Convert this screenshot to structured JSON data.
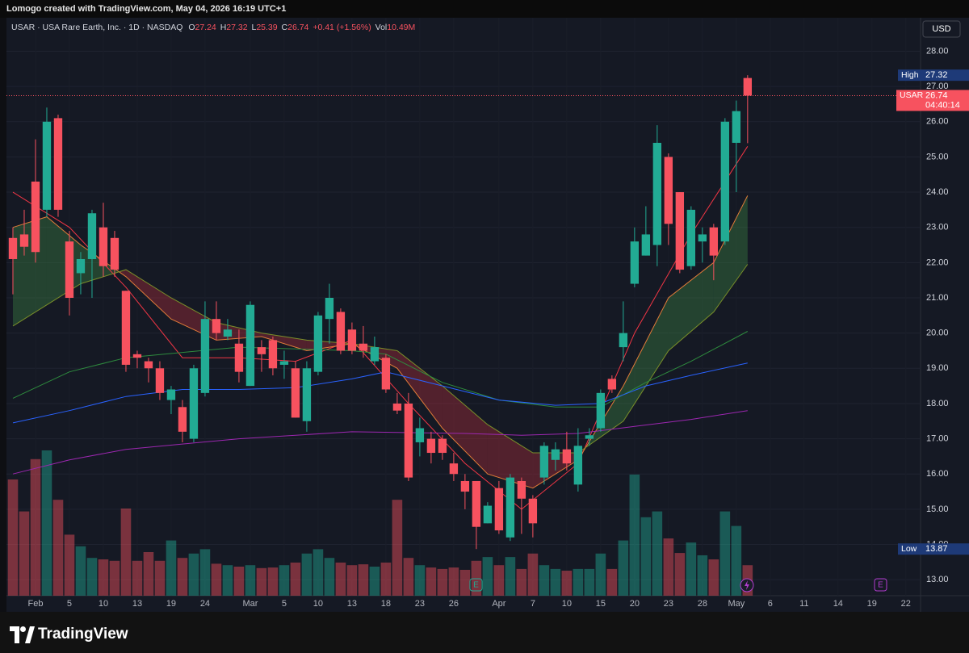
{
  "chart_data": {
    "type": "candlestick",
    "top_bar": "Lomogo created with TradingView.com, May 04, 2026 16:19 UTC+1",
    "symbol": "USAR · USA Rare Earth, Inc. · 1D · NASDAQ",
    "ohlc_labels": [
      "O",
      "H",
      "L",
      "C"
    ],
    "change": "+0.41 (+1.56%)",
    "vol_label": "Vol",
    "currency": "USD",
    "brand": "TradingView",
    "ticker": "USAR",
    "countdown": "04:40:14",
    "high_label": "High",
    "low_label": "Low",
    "events": [
      {
        "label": "E"
      },
      {
        "label": "E"
      }
    ],
    "up_color": "#22ab94",
    "down_color": "#f7525f",
    "grid": true,
    "xlim": [
      -0.57,
      80.3
    ],
    "ylim": [
      12.5,
      28.95
    ],
    "yticks": [
      {
        "value": 13,
        "label": "13.00"
      },
      {
        "value": 14,
        "label": "14.00"
      },
      {
        "value": 15,
        "label": "15.00"
      },
      {
        "value": 16,
        "label": "16.00"
      },
      {
        "value": 17,
        "label": "17.00"
      },
      {
        "value": 18,
        "label": "18.00"
      },
      {
        "value": 19,
        "label": "19.00"
      },
      {
        "value": 20,
        "label": "20.00"
      },
      {
        "value": 21,
        "label": "21.00"
      },
      {
        "value": 22,
        "label": "22.00"
      },
      {
        "value": 23,
        "label": "23.00"
      },
      {
        "value": 24,
        "label": "24.00"
      },
      {
        "value": 25,
        "label": "25.00"
      },
      {
        "value": 26,
        "label": "26.00"
      },
      {
        "value": 27,
        "label": "27.00"
      },
      {
        "value": 28,
        "label": "28.00"
      }
    ],
    "xticks": [
      {
        "value": 2,
        "label": "Feb"
      },
      {
        "value": 5,
        "label": "5"
      },
      {
        "value": 8,
        "label": "10"
      },
      {
        "value": 11,
        "label": "13"
      },
      {
        "value": 14,
        "label": "19"
      },
      {
        "value": 17,
        "label": "24"
      },
      {
        "value": 21,
        "label": "Mar"
      },
      {
        "value": 24,
        "label": "5"
      },
      {
        "value": 27,
        "label": "10"
      },
      {
        "value": 30,
        "label": "13"
      },
      {
        "value": 33,
        "label": "18"
      },
      {
        "value": 36,
        "label": "23"
      },
      {
        "value": 39,
        "label": "26"
      },
      {
        "value": 43,
        "label": "Apr"
      },
      {
        "value": 46,
        "label": "7"
      },
      {
        "value": 49,
        "label": "10"
      },
      {
        "value": 52,
        "label": "15"
      },
      {
        "value": 55,
        "label": "20"
      },
      {
        "value": 58,
        "label": "23"
      },
      {
        "value": 61,
        "label": "28"
      },
      {
        "value": 64,
        "label": "May"
      },
      {
        "value": 67,
        "label": "6"
      },
      {
        "value": 70,
        "label": "11"
      },
      {
        "value": 73,
        "label": "14"
      },
      {
        "value": 76,
        "label": "19"
      },
      {
        "value": 79,
        "label": "22"
      }
    ],
    "open": [
      22.7,
      22.8,
      24.3,
      23.5,
      26.1,
      22.6,
      21.7,
      22.1,
      23.0,
      22.7,
      21.2,
      19.4,
      19.2,
      19.0,
      18.1,
      17.9,
      17.0,
      18.3,
      20.4,
      19.9,
      19.7,
      18.5,
      19.6,
      19.8,
      19.1,
      19.0,
      17.5,
      18.9,
      20.4,
      20.6,
      20.1,
      19.7,
      19.2,
      19.3,
      18.0,
      18.0,
      16.9,
      17.0,
      17.0,
      16.3,
      15.8,
      15.8,
      14.6,
      15.6,
      14.2,
      15.8,
      15.3,
      15.9,
      16.4,
      16.7,
      15.7,
      17.0,
      17.3,
      18.7,
      19.6,
      21.4,
      22.2,
      22.5,
      25.0,
      24.0,
      21.9,
      22.6,
      23.0,
      22.6,
      25.4,
      27.24
    ],
    "high": [
      23.0,
      23.5,
      25.5,
      26.4,
      26.2,
      22.9,
      22.3,
      23.5,
      23.7,
      22.9,
      21.2,
      19.5,
      19.3,
      19.2,
      18.5,
      18.1,
      19.1,
      20.9,
      20.9,
      20.4,
      20.1,
      20.9,
      19.8,
      19.9,
      19.5,
      19.2,
      19.2,
      20.6,
      21.4,
      20.7,
      20.3,
      20.2,
      19.9,
      19.4,
      18.3,
      18.3,
      17.6,
      17.2,
      17.1,
      16.6,
      16.0,
      15.8,
      15.2,
      15.8,
      16.0,
      15.9,
      15.4,
      16.9,
      16.9,
      17.2,
      17.3,
      17.3,
      18.4,
      18.8,
      20.9,
      23.0,
      23.6,
      25.9,
      25.1,
      24.0,
      23.6,
      23.0,
      23.1,
      26.1,
      26.6,
      27.32
    ],
    "low": [
      21.1,
      22.2,
      22.0,
      23.3,
      23.3,
      20.5,
      21.1,
      21.0,
      21.6,
      21.6,
      18.9,
      19.0,
      18.6,
      18.1,
      17.7,
      16.9,
      16.9,
      18.2,
      19.8,
      19.8,
      18.6,
      18.5,
      18.9,
      18.8,
      18.7,
      17.6,
      17.2,
      18.8,
      19.7,
      19.4,
      19.4,
      19.3,
      19.1,
      18.3,
      17.7,
      15.8,
      16.5,
      16.3,
      16.4,
      15.8,
      15.0,
      13.87,
      14.6,
      14.3,
      14.1,
      14.3,
      14.2,
      15.7,
      16.1,
      16.1,
      15.5,
      16.8,
      17.2,
      18.3,
      19.2,
      21.3,
      22.2,
      21.9,
      22.5,
      21.7,
      21.8,
      22.0,
      21.5,
      22.5,
      24.0,
      25.39
    ],
    "close": [
      22.1,
      22.45,
      22.3,
      26.0,
      23.5,
      21.0,
      22.1,
      23.4,
      21.9,
      21.8,
      19.1,
      19.3,
      19.0,
      18.3,
      18.4,
      17.2,
      19.0,
      20.4,
      20.0,
      20.1,
      18.9,
      20.8,
      19.4,
      19.0,
      19.2,
      17.6,
      19.0,
      20.5,
      21.0,
      19.5,
      19.5,
      19.5,
      19.6,
      18.4,
      17.8,
      15.9,
      17.3,
      16.6,
      16.6,
      16.0,
      15.5,
      14.5,
      15.1,
      14.4,
      15.9,
      15.3,
      14.6,
      16.8,
      16.7,
      16.3,
      16.8,
      17.1,
      18.3,
      18.4,
      20.0,
      22.6,
      22.8,
      25.4,
      23.1,
      21.8,
      23.5,
      22.8,
      22.2,
      26.0,
      26.3,
      26.74
    ],
    "volume": {
      "values": [
        40,
        29,
        47,
        50,
        33,
        21,
        17,
        13,
        12.5,
        12,
        30,
        12,
        15,
        12,
        19,
        13,
        14.5,
        16,
        11,
        10.5,
        10,
        10.5,
        9.5,
        9.7,
        10.5,
        11.4,
        14.5,
        16,
        13,
        11.4,
        10.5,
        10.8,
        10,
        11.4,
        33,
        13,
        10.5,
        9.7,
        9.2,
        9.7,
        8.9,
        12,
        13.3,
        10.5,
        13.3,
        9.2,
        14.5,
        10.5,
        9.2,
        8.6,
        9.2,
        9.2,
        14.5,
        9.2,
        19,
        41.7,
        27,
        29,
        19.7,
        14.7,
        18.3,
        13.9,
        12.5,
        29,
        24,
        10.49
      ],
      "last_label": "10.49M"
    },
    "lines": [
      {
        "color": "#f23645",
        "x": [
          0,
          5,
          10,
          15,
          20,
          25,
          30,
          35,
          40,
          45,
          50,
          55,
          60,
          65
        ],
        "values": [
          24.0,
          23.0,
          21.3,
          19.3,
          19.3,
          19.2,
          19.8,
          18.0,
          16.3,
          15.0,
          16.3,
          20.0,
          22.8,
          25.3
        ]
      },
      {
        "color": "#e07b39",
        "x": [
          0,
          3,
          6,
          10,
          14,
          18,
          22,
          26,
          30,
          34,
          38,
          42,
          46,
          50,
          54,
          58,
          62,
          65
        ],
        "values": [
          23.0,
          23.3,
          22.5,
          21.6,
          20.4,
          19.8,
          19.9,
          19.5,
          19.7,
          19.0,
          17.3,
          16.0,
          15.6,
          16.4,
          18.5,
          21.0,
          22.0,
          23.9
        ]
      },
      {
        "color": "#7a8f2a",
        "x": [
          0,
          3,
          6,
          10,
          14,
          18,
          22,
          26,
          30,
          34,
          38,
          42,
          46,
          50,
          54,
          58,
          62,
          65
        ],
        "values": [
          20.2,
          20.8,
          21.4,
          21.8,
          21.0,
          20.3,
          20.0,
          19.8,
          19.7,
          19.5,
          18.5,
          17.4,
          16.6,
          16.6,
          17.5,
          19.5,
          20.6,
          21.95
        ]
      },
      {
        "color": "#2e8b3e",
        "x": [
          0,
          5,
          10,
          20,
          30,
          33,
          38,
          43,
          48,
          52,
          56,
          60,
          65
        ],
        "values": [
          18.15,
          18.9,
          19.3,
          19.6,
          19.5,
          19.4,
          18.6,
          18.1,
          17.9,
          17.9,
          18.6,
          19.2,
          20.05
        ]
      },
      {
        "color": "#2962ff",
        "x": [
          0,
          5,
          10,
          15,
          20,
          25,
          30,
          33,
          38,
          43,
          48,
          52,
          56,
          60,
          65
        ],
        "values": [
          17.45,
          17.8,
          18.2,
          18.4,
          18.4,
          18.45,
          18.7,
          18.9,
          18.5,
          18.1,
          17.95,
          18.0,
          18.5,
          18.8,
          19.15
        ]
      },
      {
        "color": "#9c27b0",
        "x": [
          0,
          5,
          10,
          15,
          20,
          30,
          40,
          45,
          50,
          55,
          60,
          65
        ],
        "values": [
          16.0,
          16.4,
          16.7,
          16.85,
          17.0,
          17.2,
          17.15,
          17.1,
          17.15,
          17.35,
          17.55,
          17.8
        ]
      }
    ],
    "cloud": {
      "between": [
        1,
        2
      ],
      "up_color": "rgba(76,175,80,0.28)",
      "down_color": "rgba(242,54,69,0.28)"
    }
  }
}
